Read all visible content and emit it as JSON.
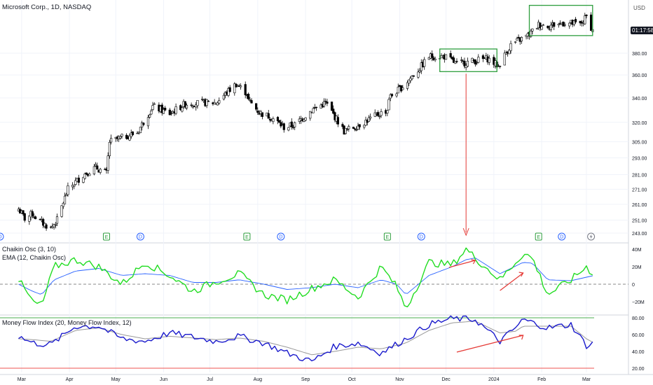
{
  "header": {
    "symbol_title": "Microsoft Corp., 1D, NASDAQ",
    "currency": "USD",
    "countdown": "01:17:58"
  },
  "colors": {
    "up_candle": "#ffffff",
    "down_candle": "#000000",
    "candle_outline": "#000000",
    "box_outline": "#2e9e3e",
    "arrow": "#e53935",
    "chaikin_line": "#22dd22",
    "chaikin_ema": "#2962ff",
    "mfi_line": "#1a1acc",
    "mfi_ma": "#999999",
    "mfi_upper_band": "#4caf50",
    "mfi_lower_band": "#ef5350",
    "grid": "#f0f3fa"
  },
  "icons": {
    "dividend_badge": "D",
    "earnings_badge": "E",
    "split_badge": "lightning-icon"
  },
  "chart_data": [
    {
      "type": "candlestick",
      "title": "Microsoft Corp., 1D, NASDAQ",
      "x_tick_labels": [
        "Mar",
        "Apr",
        "May",
        "Jun",
        "Jul",
        "Aug",
        "Sep",
        "Oct",
        "Nov",
        "Dec",
        "2024",
        "Feb",
        "Mar"
      ],
      "y_tick_labels": [
        "243.00",
        "251.00",
        "261.00",
        "271.00",
        "281.00",
        "293.00",
        "305.00",
        "320.00",
        "340.00",
        "360.00",
        "380.00"
      ],
      "y_scale": "log",
      "ylim": [
        238,
        430
      ],
      "price_path": {
        "dates": [
          "2023-02-27",
          "2023-03-03",
          "2023-03-08",
          "2023-03-13",
          "2023-03-20",
          "2023-03-24",
          "2023-03-31",
          "2023-04-10",
          "2023-04-18",
          "2023-04-25",
          "2023-04-27",
          "2023-05-05",
          "2023-05-15",
          "2023-05-25",
          "2023-06-05",
          "2023-06-15",
          "2023-06-26",
          "2023-07-05",
          "2023-07-18",
          "2023-07-25",
          "2023-07-26",
          "2023-08-02",
          "2023-08-10",
          "2023-08-18",
          "2023-08-25",
          "2023-09-05",
          "2023-09-14",
          "2023-09-26",
          "2023-10-04",
          "2023-10-16",
          "2023-10-24",
          "2023-10-25",
          "2023-11-03",
          "2023-11-14",
          "2023-11-20",
          "2023-11-30",
          "2023-12-08",
          "2023-12-20",
          "2023-12-28",
          "2024-01-04",
          "2024-01-12",
          "2024-01-24",
          "2024-01-30",
          "2024-02-06",
          "2024-02-16",
          "2024-02-26",
          "2024-03-01",
          "2024-03-05"
        ],
        "close": [
          258,
          252,
          255,
          250,
          246,
          251,
          271,
          281,
          286,
          282,
          305,
          308,
          312,
          333,
          327,
          335,
          336,
          336,
          352,
          344,
          338,
          328,
          324,
          316,
          318,
          330,
          336,
          313,
          317,
          325,
          330,
          340,
          350,
          366,
          377,
          377,
          370,
          373,
          375,
          368,
          388,
          398,
          408,
          407,
          410,
          408,
          416,
          402
        ]
      },
      "annotations": [
        {
          "type": "box",
          "label": "",
          "start": "2023-11-27",
          "end": "2024-01-03",
          "low": 363,
          "high": 384
        },
        {
          "type": "box",
          "label": "",
          "start": "2024-01-24",
          "end": "2024-03-05",
          "low": 397,
          "high": 428
        },
        {
          "type": "arrow",
          "from": "consolidation box (Dec 2023)",
          "to": "Chaikin Oscillator panel"
        }
      ],
      "events": [
        {
          "badge": "D",
          "date": "2023-02-15"
        },
        {
          "badge": "E",
          "date": "2023-04-25"
        },
        {
          "badge": "D",
          "date": "2023-05-17"
        },
        {
          "badge": "E",
          "date": "2023-07-25"
        },
        {
          "badge": "D",
          "date": "2023-08-16"
        },
        {
          "badge": "E",
          "date": "2023-10-24"
        },
        {
          "badge": "D",
          "date": "2023-11-15"
        },
        {
          "badge": "E",
          "date": "2024-01-30"
        },
        {
          "badge": "D",
          "date": "2024-02-14"
        },
        {
          "badge": "lightning-icon",
          "date": "2024-03-04"
        }
      ]
    },
    {
      "type": "line",
      "title": "Chaikin Osc (3, 10)",
      "series": [
        {
          "name": "Chaikin Osc (3, 10)"
        },
        {
          "name": "EMA (12, Chaikin Osc)"
        }
      ],
      "y_tick_labels": [
        "40M",
        "20M",
        "0",
        "−20M"
      ],
      "ylim": [
        -35,
        45
      ],
      "reference_line": 0,
      "key_values_M": {
        "dates": [
          "2023-02-27",
          "2023-03-08",
          "2023-03-14",
          "2023-03-22",
          "2023-04-05",
          "2023-04-20",
          "2023-05-05",
          "2023-05-20",
          "2023-06-05",
          "2023-06-20",
          "2023-07-05",
          "2023-07-20",
          "2023-08-05",
          "2023-08-20",
          "2023-09-05",
          "2023-09-20",
          "2023-10-05",
          "2023-10-20",
          "2023-10-30",
          "2023-11-05",
          "2023-11-20",
          "2023-12-05",
          "2023-12-14",
          "2023-12-20",
          "2024-01-05",
          "2024-01-20",
          "2024-01-26",
          "2024-02-05",
          "2024-02-20",
          "2024-03-01",
          "2024-03-06"
        ],
        "chaikin": [
          5,
          -20,
          -25,
          20,
          28,
          20,
          0,
          25,
          10,
          -8,
          3,
          12,
          -12,
          -18,
          -5,
          5,
          -15,
          20,
          -3,
          -28,
          25,
          22,
          40,
          30,
          5,
          35,
          30,
          -12,
          5,
          20,
          10
        ],
        "ema": [
          0,
          -8,
          -12,
          5,
          15,
          18,
          10,
          12,
          10,
          2,
          2,
          5,
          0,
          -6,
          -4,
          0,
          -4,
          5,
          0,
          -12,
          10,
          20,
          28,
          30,
          12,
          25,
          24,
          5,
          4,
          8,
          10
        ]
      },
      "arrows": [
        "rising divergence near Dec 2023",
        "rising divergence near Jan 2024"
      ]
    },
    {
      "type": "line",
      "title": "Money Flow Index (20, Money Flow Index, 12)",
      "series": [
        {
          "name": "Money Flow Index (20, Money Flow Index, 12)"
        }
      ],
      "y_tick_labels": [
        "80.00",
        "60.00",
        "40.00",
        "20.00"
      ],
      "ylim": [
        18,
        82
      ],
      "bands": {
        "upper": 80,
        "lower": 20
      },
      "key_values": {
        "dates": [
          "2023-02-27",
          "2023-03-08",
          "2023-03-20",
          "2023-04-05",
          "2023-04-20",
          "2023-05-05",
          "2023-05-20",
          "2023-06-05",
          "2023-06-20",
          "2023-07-05",
          "2023-07-20",
          "2023-08-05",
          "2023-08-20",
          "2023-09-05",
          "2023-09-20",
          "2023-10-05",
          "2023-10-20",
          "2023-11-05",
          "2023-11-20",
          "2023-12-05",
          "2023-12-20",
          "2024-01-05",
          "2024-01-15",
          "2024-01-20",
          "2024-02-05",
          "2024-02-20",
          "2024-03-01",
          "2024-03-06"
        ],
        "mfi": [
          58,
          50,
          48,
          70,
          70,
          55,
          52,
          62,
          57,
          52,
          58,
          50,
          38,
          28,
          46,
          50,
          38,
          55,
          72,
          79,
          78,
          52,
          68,
          78,
          68,
          72,
          47,
          50
        ],
        "ma": [
          55,
          54,
          52,
          65,
          68,
          60,
          55,
          58,
          56,
          54,
          56,
          52,
          45,
          36,
          40,
          45,
          43,
          50,
          65,
          74,
          76,
          62,
          64,
          70,
          70,
          70,
          55,
          50
        ]
      },
      "arrows": [
        "rising trend line Dec 2023 - Jan 2024"
      ]
    }
  ]
}
